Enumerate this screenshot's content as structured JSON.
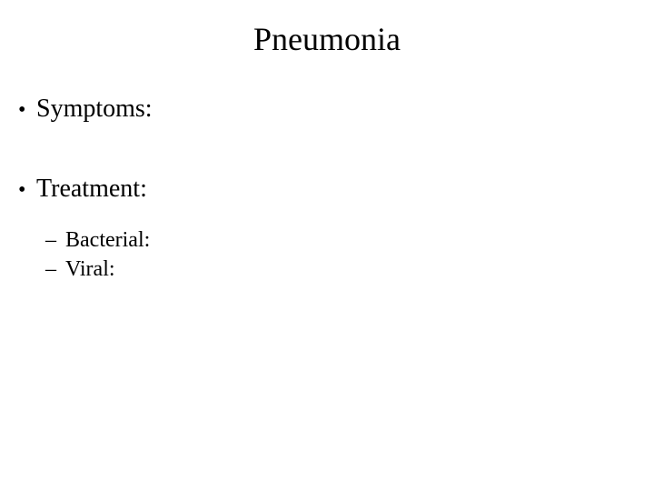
{
  "slide": {
    "title": "Pneumonia",
    "bullets": [
      {
        "label": "Symptoms:"
      },
      {
        "label": "Treatment:"
      }
    ],
    "sub_bullets": [
      {
        "label": "Bacterial:"
      },
      {
        "label": "Viral:"
      }
    ]
  },
  "style": {
    "background_color": "#ffffff",
    "text_color": "#000000",
    "title_fontsize": 36,
    "bullet_fontsize": 28,
    "sub_bullet_fontsize": 24,
    "font_family": "Times New Roman"
  }
}
